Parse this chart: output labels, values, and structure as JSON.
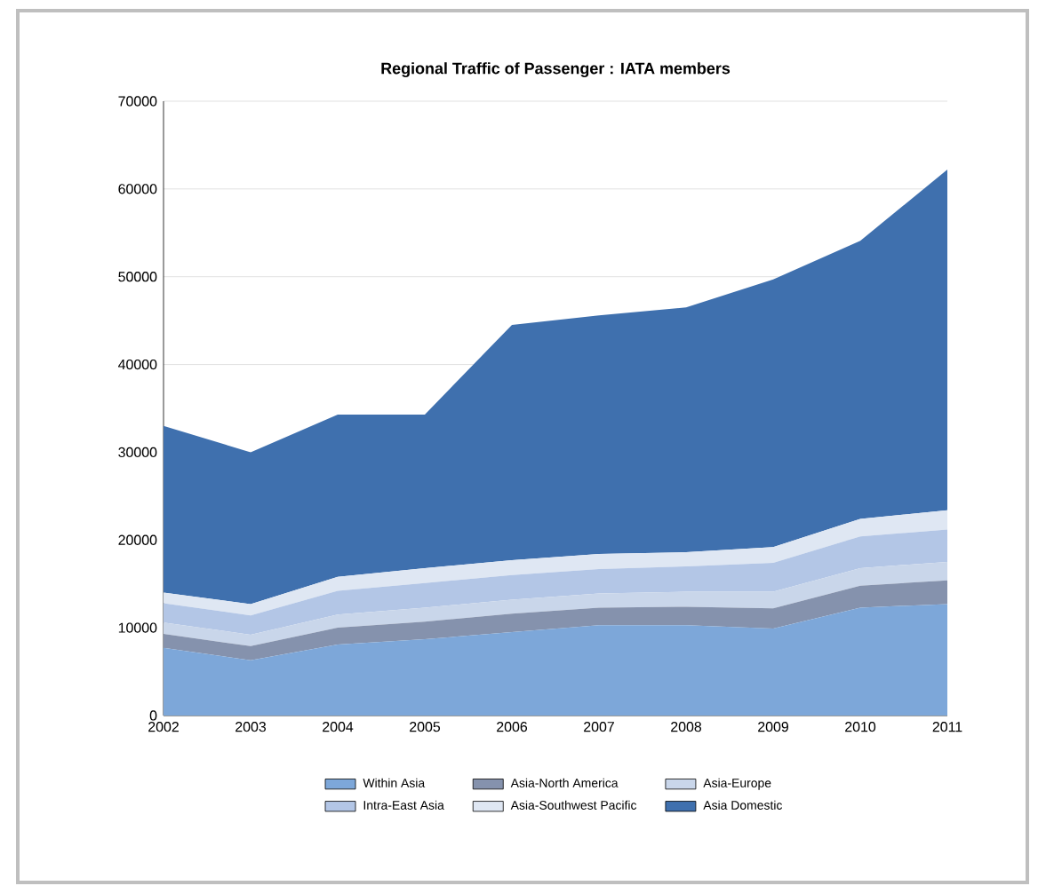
{
  "chart_data": {
    "type": "area",
    "stacked": true,
    "title": "Regional Traffic of Passenger : IATA members",
    "x": [
      2002,
      2003,
      2004,
      2005,
      2006,
      2007,
      2008,
      2009,
      2010,
      2011
    ],
    "xlim": [
      2002,
      2011
    ],
    "xticks": [
      2002,
      2003,
      2004,
      2005,
      2006,
      2007,
      2008,
      2009,
      2010,
      2011
    ],
    "ylim": [
      0,
      70000
    ],
    "yticks": [
      0,
      10000,
      20000,
      30000,
      40000,
      50000,
      60000,
      70000
    ],
    "grid": "y",
    "legend": "bottom",
    "series": [
      {
        "name": "Within Asia",
        "color": "#7da7d9",
        "values": [
          7700,
          6300,
          8100,
          8700,
          9500,
          10300,
          10300,
          9900,
          12300,
          12700
        ]
      },
      {
        "name": "Asia-North America",
        "color": "#8592ad",
        "values": [
          1600,
          1600,
          1900,
          2000,
          2100,
          2000,
          2100,
          2300,
          2500,
          2700
        ]
      },
      {
        "name": "Asia-Europe",
        "color": "#c9d6ea",
        "values": [
          1300,
          1300,
          1500,
          1600,
          1600,
          1600,
          1700,
          1900,
          2000,
          2100
        ]
      },
      {
        "name": "Intra-East Asia",
        "color": "#b3c6e6",
        "values": [
          2200,
          2200,
          2700,
          2800,
          2800,
          2800,
          2900,
          3300,
          3600,
          3700
        ]
      },
      {
        "name": "Asia-Southwest Pacific",
        "color": "#dfe7f3",
        "values": [
          1200,
          1300,
          1600,
          1700,
          1700,
          1700,
          1600,
          1800,
          2000,
          2200
        ]
      },
      {
        "name": "Asia Domestic",
        "color": "#3f70ae",
        "values": [
          19000,
          17300,
          18500,
          17500,
          26800,
          27200,
          27900,
          30500,
          31700,
          38800
        ]
      }
    ]
  }
}
